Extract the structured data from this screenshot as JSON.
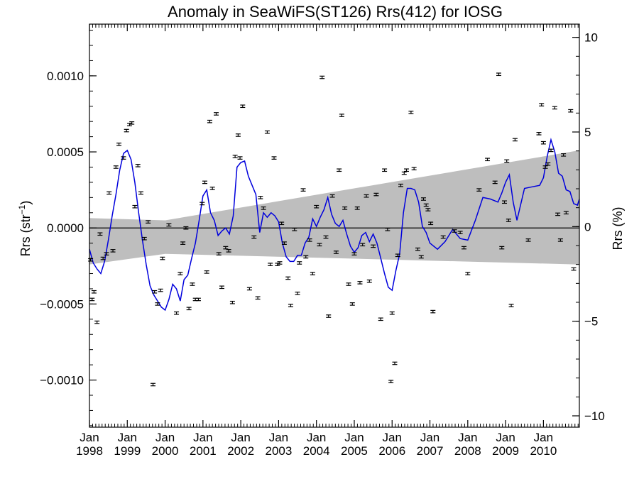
{
  "chart_data": {
    "type": "scatter",
    "title": "Anomaly in SeaWiFS(ST126) Rrs(412) for IOSG",
    "ylabel_left": "Rrs (str",
    "ylabel_left_sup": "−1",
    "ylabel_left_close": ")",
    "ylabel_right": "Rrs (%)",
    "xlim": [
      1998.0,
      2010.95
    ],
    "ylim": [
      -0.00131,
      0.00134
    ],
    "ylim_right_pct": [
      -10.6,
      10.7
    ],
    "grid": false,
    "x_ticks": [
      {
        "x": 1998,
        "month": "Jan",
        "year": "1998"
      },
      {
        "x": 1999,
        "month": "Jan",
        "year": "1999"
      },
      {
        "x": 2000,
        "month": "Jan",
        "year": "2000"
      },
      {
        "x": 2001,
        "month": "Jan",
        "year": "2001"
      },
      {
        "x": 2002,
        "month": "Jan",
        "year": "2002"
      },
      {
        "x": 2003,
        "month": "Jan",
        "year": "2003"
      },
      {
        "x": 2004,
        "month": "Jan",
        "year": "2004"
      },
      {
        "x": 2005,
        "month": "Jan",
        "year": "2005"
      },
      {
        "x": 2006,
        "month": "Jan",
        "year": "2006"
      },
      {
        "x": 2007,
        "month": "Jan",
        "year": "2007"
      },
      {
        "x": 2008,
        "month": "Jan",
        "year": "2008"
      },
      {
        "x": 2009,
        "month": "Jan",
        "year": "2009"
      },
      {
        "x": 2010,
        "month": "Jan",
        "year": "2010"
      }
    ],
    "y_ticks_left": [
      {
        "value": 0.001,
        "label": "0.0010"
      },
      {
        "value": 0.0005,
        "label": "0.0005"
      },
      {
        "value": 0.0,
        "label": "0.0000"
      },
      {
        "value": -0.0005,
        "label": "−0.0005"
      },
      {
        "value": -0.001,
        "label": "−0.0010"
      }
    ],
    "y_ticks_right": [
      {
        "value": 10,
        "label": "10"
      },
      {
        "value": 5,
        "label": "5"
      },
      {
        "value": 0,
        "label": "0"
      },
      {
        "value": -5,
        "label": "−5"
      },
      {
        "value": -10,
        "label": "−10"
      }
    ],
    "uncertainty_band": {
      "color": "#bebebe",
      "x": [
        1998.0,
        2000.0,
        2010.95
      ],
      "upper": [
        6.5e-05,
        5e-05,
        0.00051
      ],
      "lower": [
        -0.00024,
        -0.00017,
        -0.00024
      ]
    },
    "zero_line": 0.0,
    "smooth_line": {
      "color": "#0000dd",
      "x": [
        1998.0,
        1998.1,
        1998.2,
        1998.3,
        1998.4,
        1998.5,
        1998.6,
        1998.7,
        1998.8,
        1998.9,
        1999.0,
        1999.1,
        1999.2,
        1999.3,
        1999.4,
        1999.5,
        1999.6,
        1999.7,
        1999.8,
        1999.9,
        2000.0,
        2000.1,
        2000.2,
        2000.3,
        2000.4,
        2000.5,
        2000.6,
        2000.7,
        2000.8,
        2000.9,
        2001.0,
        2001.1,
        2001.2,
        2001.3,
        2001.4,
        2001.5,
        2001.6,
        2001.7,
        2001.8,
        2001.9,
        2002.0,
        2002.1,
        2002.2,
        2002.3,
        2002.4,
        2002.5,
        2002.6,
        2002.7,
        2002.8,
        2002.9,
        2003.0,
        2003.1,
        2003.2,
        2003.3,
        2003.4,
        2003.5,
        2003.6,
        2003.7,
        2003.8,
        2003.9,
        2004.0,
        2004.1,
        2004.2,
        2004.3,
        2004.4,
        2004.5,
        2004.6,
        2004.7,
        2004.8,
        2004.9,
        2005.0,
        2005.1,
        2005.2,
        2005.3,
        2005.4,
        2005.5,
        2005.6,
        2005.7,
        2005.8,
        2005.9,
        2006.0,
        2006.1,
        2006.2,
        2006.3,
        2006.4,
        2006.5,
        2006.6,
        2006.7,
        2006.8,
        2006.9,
        2007.0,
        2007.2,
        2007.4,
        2007.6,
        2007.8,
        2008.0,
        2008.2,
        2008.4,
        2008.6,
        2008.8,
        2008.9,
        2009.0,
        2009.1,
        2009.2,
        2009.3,
        2009.5,
        2009.7,
        2009.9,
        2010.0,
        2010.1,
        2010.2,
        2010.3,
        2010.4,
        2010.5,
        2010.6,
        2010.7,
        2010.8,
        2010.9,
        2010.95
      ],
      "y": [
        -0.00014,
        -0.00023,
        -0.00027,
        -0.0003,
        -0.00022,
        -8e-05,
        8e-05,
        0.00022,
        0.00038,
        0.00049,
        0.00051,
        0.00045,
        0.0003,
        0.0001,
        -8e-05,
        -0.00024,
        -0.00038,
        -0.00044,
        -0.00048,
        -0.00052,
        -0.00054,
        -0.00047,
        -0.00037,
        -0.0004,
        -0.00048,
        -0.00034,
        -0.00031,
        -0.0002,
        -0.0001,
        5e-05,
        0.00021,
        0.00025,
        0.0001,
        5e-05,
        -5e-05,
        -2e-05,
        0.0,
        -4e-05,
        8e-05,
        0.0004,
        0.00043,
        0.00044,
        0.00034,
        0.00028,
        0.00022,
        -3e-05,
        0.0001,
        7e-05,
        0.0001,
        8e-05,
        4e-05,
        -0.0001,
        -0.00019,
        -0.00022,
        -0.00022,
        -0.00018,
        -0.00018,
        -0.0001,
        -6e-05,
        6e-05,
        1e-05,
        7e-05,
        0.00012,
        0.0002,
        9e-05,
        3e-05,
        1e-05,
        5e-05,
        -4e-05,
        -0.00012,
        -0.00016,
        -0.00013,
        -5e-05,
        -3e-05,
        -9e-05,
        -4e-05,
        -0.0001,
        -0.0002,
        -0.0003,
        -0.00039,
        -0.00041,
        -0.00028,
        -0.00017,
        0.0001,
        0.00026,
        0.00026,
        0.00025,
        0.00017,
        1e-05,
        -3e-05,
        -0.0001,
        -0.00014,
        -9e-05,
        -1e-05,
        -7e-05,
        -8e-05,
        5e-05,
        0.0002,
        0.00019,
        0.00017,
        0.00023,
        0.0003,
        0.00035,
        0.00017,
        5e-05,
        0.00026,
        0.00027,
        0.00028,
        0.00033,
        0.00047,
        0.00058,
        0.0005,
        0.00036,
        0.00034,
        0.00025,
        0.00024,
        0.00016,
        0.00015,
        0.00019
      ]
    },
    "points": [
      {
        "x": 1998.03,
        "y": -0.00021
      },
      {
        "x": 1998.07,
        "y": -0.00047
      },
      {
        "x": 1998.12,
        "y": -0.00042
      },
      {
        "x": 1998.2,
        "y": -0.00062
      },
      {
        "x": 1998.28,
        "y": -4e-05
      },
      {
        "x": 1998.36,
        "y": -0.0002
      },
      {
        "x": 1998.45,
        "y": -0.00017
      },
      {
        "x": 1998.52,
        "y": 0.00023
      },
      {
        "x": 1998.62,
        "y": -0.00015
      },
      {
        "x": 1998.7,
        "y": 0.0004
      },
      {
        "x": 1998.78,
        "y": 0.00055
      },
      {
        "x": 1998.9,
        "y": 0.00046
      },
      {
        "x": 1998.98,
        "y": 0.00064
      },
      {
        "x": 1999.06,
        "y": 0.00068
      },
      {
        "x": 1999.12,
        "y": 0.00069
      },
      {
        "x": 1999.2,
        "y": 0.00014
      },
      {
        "x": 1999.28,
        "y": 0.00041
      },
      {
        "x": 1999.36,
        "y": 0.00023
      },
      {
        "x": 1999.45,
        "y": -7e-05
      },
      {
        "x": 1999.55,
        "y": 4e-05
      },
      {
        "x": 1999.72,
        "y": -0.00042
      },
      {
        "x": 1999.8,
        "y": -0.0005
      },
      {
        "x": 1999.88,
        "y": -0.00041
      },
      {
        "x": 1999.93,
        "y": -0.0002
      },
      {
        "x": 1999.68,
        "y": -0.00103
      },
      {
        "x": 2000.1,
        "y": 2e-05
      },
      {
        "x": 2000.3,
        "y": -0.00056
      },
      {
        "x": 2000.4,
        "y": -0.0003
      },
      {
        "x": 2000.47,
        "y": -0.0001
      },
      {
        "x": 2000.55,
        "y": 0.0
      },
      {
        "x": 2000.63,
        "y": -0.00053
      },
      {
        "x": 2000.72,
        "y": -0.00037
      },
      {
        "x": 2000.8,
        "y": -0.00047
      },
      {
        "x": 2000.88,
        "y": -0.00047
      },
      {
        "x": 2000.98,
        "y": 0.00016
      },
      {
        "x": 2001.05,
        "y": 0.0003
      },
      {
        "x": 2001.1,
        "y": -0.00029
      },
      {
        "x": 2001.18,
        "y": 0.0007
      },
      {
        "x": 2001.25,
        "y": 0.00026
      },
      {
        "x": 2001.35,
        "y": 0.00075
      },
      {
        "x": 2001.42,
        "y": -0.00017
      },
      {
        "x": 2001.5,
        "y": -0.00039
      },
      {
        "x": 2001.6,
        "y": -0.00013
      },
      {
        "x": 2001.68,
        "y": -0.00015
      },
      {
        "x": 2001.78,
        "y": -0.00049
      },
      {
        "x": 2001.85,
        "y": 0.00047
      },
      {
        "x": 2001.93,
        "y": 0.00061
      },
      {
        "x": 2001.98,
        "y": 0.00046
      },
      {
        "x": 2002.05,
        "y": 0.0008
      },
      {
        "x": 2002.23,
        "y": -0.0004
      },
      {
        "x": 2002.35,
        "y": -6e-05
      },
      {
        "x": 2002.45,
        "y": -0.00046
      },
      {
        "x": 2002.52,
        "y": 0.0002
      },
      {
        "x": 2002.6,
        "y": 0.00013
      },
      {
        "x": 2002.7,
        "y": 0.00063
      },
      {
        "x": 2002.78,
        "y": -0.00024
      },
      {
        "x": 2002.88,
        "y": 0.00046
      },
      {
        "x": 2002.97,
        "y": -0.00024
      },
      {
        "x": 2003.03,
        "y": -0.00023
      },
      {
        "x": 2003.08,
        "y": 3e-05
      },
      {
        "x": 2003.15,
        "y": -0.0001
      },
      {
        "x": 2003.25,
        "y": -0.00033
      },
      {
        "x": 2003.32,
        "y": -0.00051
      },
      {
        "x": 2003.42,
        "y": -1e-05
      },
      {
        "x": 2003.5,
        "y": -0.00043
      },
      {
        "x": 2003.55,
        "y": -0.00023
      },
      {
        "x": 2003.65,
        "y": 0.00025
      },
      {
        "x": 2003.72,
        "y": -0.00019
      },
      {
        "x": 2003.82,
        "y": -8e-05
      },
      {
        "x": 2003.9,
        "y": -0.0003
      },
      {
        "x": 2004.0,
        "y": 0.00014
      },
      {
        "x": 2004.08,
        "y": -0.00011
      },
      {
        "x": 2004.15,
        "y": 0.00099
      },
      {
        "x": 2004.25,
        "y": -6e-05
      },
      {
        "x": 2004.32,
        "y": -0.00058
      },
      {
        "x": 2004.42,
        "y": 0.00021
      },
      {
        "x": 2004.52,
        "y": -0.00016
      },
      {
        "x": 2004.6,
        "y": 0.00038
      },
      {
        "x": 2004.67,
        "y": 0.00074
      },
      {
        "x": 2004.75,
        "y": 0.00013
      },
      {
        "x": 2004.85,
        "y": -0.00037
      },
      {
        "x": 2004.95,
        "y": -0.0005
      },
      {
        "x": 2005.0,
        "y": -0.00017
      },
      {
        "x": 2005.08,
        "y": 0.00013
      },
      {
        "x": 2005.15,
        "y": -0.00036
      },
      {
        "x": 2005.22,
        "y": -0.00011
      },
      {
        "x": 2005.32,
        "y": 0.00021
      },
      {
        "x": 2005.4,
        "y": -0.00035
      },
      {
        "x": 2005.5,
        "y": -0.00012
      },
      {
        "x": 2005.58,
        "y": 0.00022
      },
      {
        "x": 2005.7,
        "y": -0.0006
      },
      {
        "x": 2005.8,
        "y": 0.00038
      },
      {
        "x": 2005.88,
        "y": -1e-05
      },
      {
        "x": 2005.97,
        "y": -0.00101
      },
      {
        "x": 2006.0,
        "y": -0.00056
      },
      {
        "x": 2006.07,
        "y": -0.00089
      },
      {
        "x": 2006.15,
        "y": -0.00018
      },
      {
        "x": 2006.23,
        "y": 0.00028
      },
      {
        "x": 2006.32,
        "y": 0.00036
      },
      {
        "x": 2006.38,
        "y": 0.00038
      },
      {
        "x": 2006.5,
        "y": 0.00076
      },
      {
        "x": 2006.58,
        "y": 0.00039
      },
      {
        "x": 2006.68,
        "y": -0.00014
      },
      {
        "x": 2006.77,
        "y": -0.00019
      },
      {
        "x": 2006.83,
        "y": 0.00019
      },
      {
        "x": 2006.9,
        "y": 0.00015
      },
      {
        "x": 2006.95,
        "y": 0.00012
      },
      {
        "x": 2007.02,
        "y": 3e-05
      },
      {
        "x": 2007.08,
        "y": -0.00055
      },
      {
        "x": 2007.35,
        "y": -6e-05
      },
      {
        "x": 2007.65,
        "y": -2e-05
      },
      {
        "x": 2007.8,
        "y": -3e-05
      },
      {
        "x": 2007.9,
        "y": -0.00013
      },
      {
        "x": 2008.0,
        "y": -0.0003
      },
      {
        "x": 2008.3,
        "y": 0.00025
      },
      {
        "x": 2008.52,
        "y": 0.00045
      },
      {
        "x": 2008.72,
        "y": 0.0003
      },
      {
        "x": 2008.82,
        "y": 0.00101
      },
      {
        "x": 2008.9,
        "y": -0.00013
      },
      {
        "x": 2008.97,
        "y": 0.00017
      },
      {
        "x": 2009.03,
        "y": 0.00044
      },
      {
        "x": 2009.08,
        "y": 5e-05
      },
      {
        "x": 2009.15,
        "y": -0.00051
      },
      {
        "x": 2009.25,
        "y": 0.00058
      },
      {
        "x": 2009.6,
        "y": -8e-05
      },
      {
        "x": 2009.88,
        "y": 0.00062
      },
      {
        "x": 2009.95,
        "y": 0.00081
      },
      {
        "x": 2010.0,
        "y": 0.00056
      },
      {
        "x": 2010.05,
        "y": 0.0004
      },
      {
        "x": 2010.12,
        "y": 0.00042
      },
      {
        "x": 2010.2,
        "y": 0.00051
      },
      {
        "x": 2010.3,
        "y": 0.00079
      },
      {
        "x": 2010.38,
        "y": 9e-05
      },
      {
        "x": 2010.45,
        "y": -8e-05
      },
      {
        "x": 2010.53,
        "y": 0.00048
      },
      {
        "x": 2010.6,
        "y": 0.0001
      },
      {
        "x": 2010.72,
        "y": 0.00077
      },
      {
        "x": 2010.8,
        "y": -0.00027
      }
    ],
    "error_bar": 8e-06
  }
}
